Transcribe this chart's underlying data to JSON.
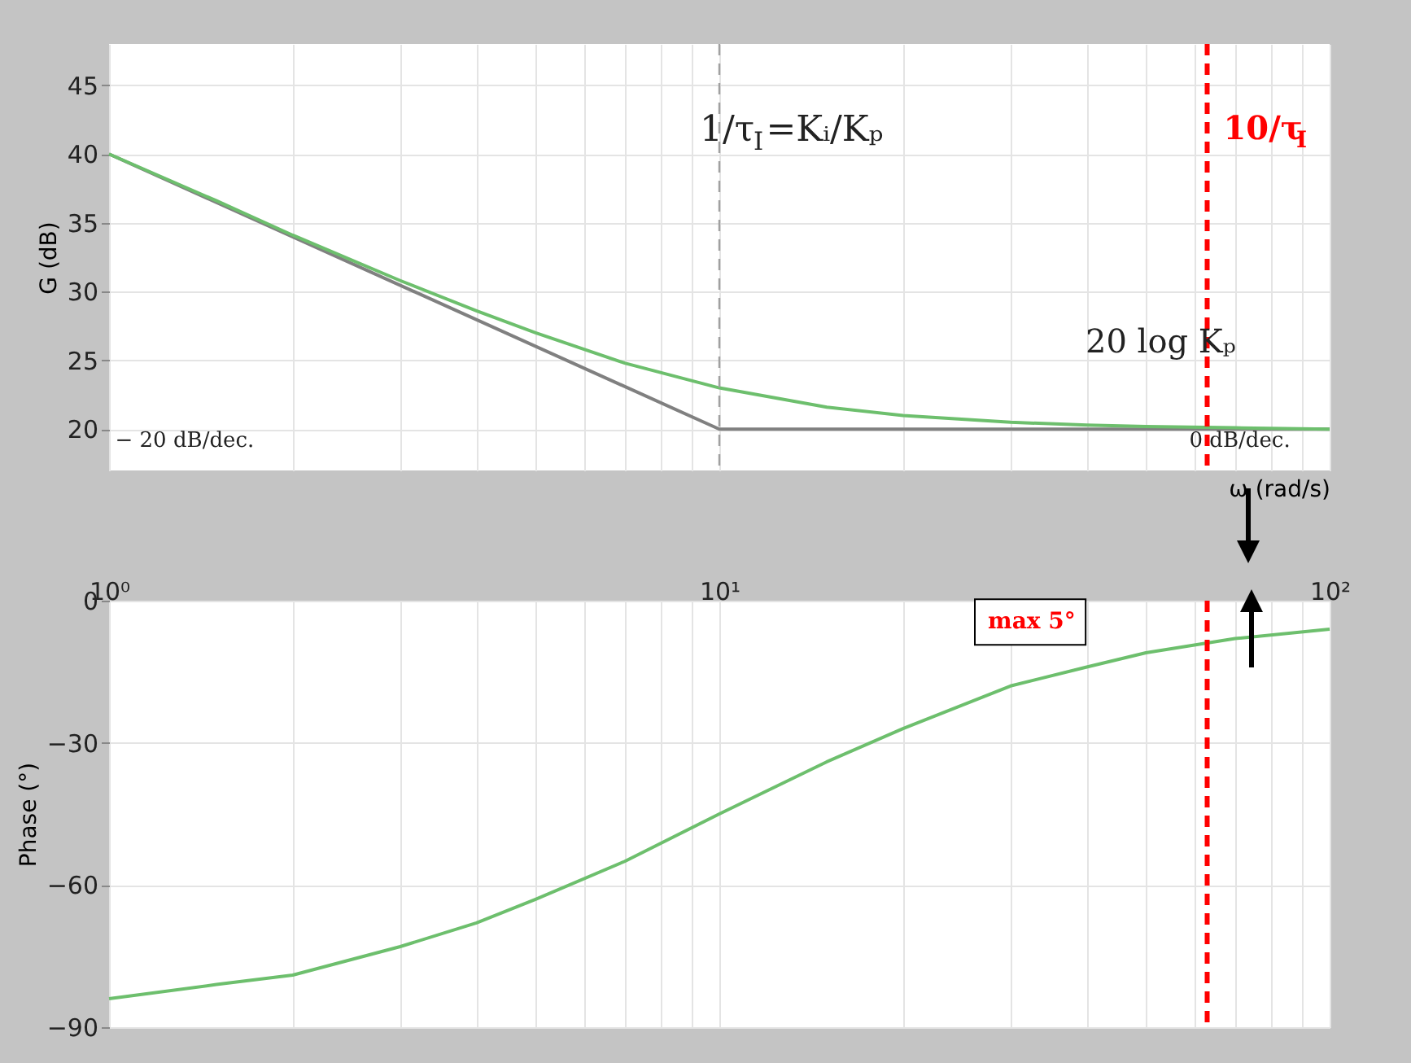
{
  "chart_data": [
    {
      "type": "line",
      "ylabel": "G (dB)",
      "xlabel": "ω (rad/s)",
      "log": "x",
      "grid": true,
      "tick_labels": "y",
      "xlim": [
        1,
        100
      ],
      "ylim": [
        17,
        48
      ],
      "yticks": [
        20,
        25,
        30,
        35,
        40,
        45
      ],
      "xticks": [
        1,
        2,
        3,
        4,
        5,
        6,
        7,
        8,
        9,
        10,
        20,
        30,
        40,
        50,
        60,
        70,
        80,
        90,
        100
      ],
      "series": [
        {
          "color": "#808080",
          "x": [
            1,
            10,
            100
          ],
          "values": [
            40,
            20,
            20
          ]
        },
        {
          "color": "#6dbf6d",
          "x": [
            1,
            1.5,
            2,
            3,
            4,
            5,
            7,
            10,
            15,
            20,
            30,
            40,
            50,
            70,
            100
          ],
          "values": [
            40.0,
            36.6,
            34.1,
            30.8,
            28.6,
            27.0,
            24.8,
            23.0,
            21.6,
            21.0,
            20.5,
            20.3,
            20.2,
            20.1,
            20.0
          ]
        }
      ],
      "ref_lines": [
        {
          "axis": "x",
          "value": 10,
          "label": "1/τ$_{I}$=Kᵢ/Kₚ",
          "color": "#a0a0a0",
          "line_style": "dashed"
        },
        {
          "axis": "x",
          "value": 63,
          "label": "10/τ$_{I}$",
          "color": "#ff0000",
          "line_style": "dashed"
        }
      ],
      "annotations": [
        "20 log Kₚ",
        "− 20 dB/dec.",
        "0 dB/dec."
      ]
    },
    {
      "type": "line",
      "ylabel": "Phase (°)",
      "log": "x",
      "grid": true,
      "xlim": [
        1,
        100
      ],
      "ylim": [
        -90,
        0
      ],
      "yticks": [
        {
          "value": -90,
          "label": "−90"
        },
        {
          "value": -60,
          "label": "−60"
        },
        {
          "value": -30,
          "label": "−30"
        },
        0
      ],
      "xticks": [
        {
          "value": 1,
          "label": "10⁰"
        },
        {
          "value": 2,
          "label": null
        },
        {
          "value": 3,
          "label": null
        },
        {
          "value": 4,
          "label": null
        },
        {
          "value": 5,
          "label": null
        },
        {
          "value": 6,
          "label": null
        },
        {
          "value": 7,
          "label": null
        },
        {
          "value": 8,
          "label": null
        },
        {
          "value": 9,
          "label": null
        },
        {
          "value": 10,
          "label": "10¹"
        },
        {
          "value": 20,
          "label": null
        },
        {
          "value": 30,
          "label": null
        },
        {
          "value": 40,
          "label": null
        },
        {
          "value": 50,
          "label": null
        },
        {
          "value": 60,
          "label": null
        },
        {
          "value": 70,
          "label": null
        },
        {
          "value": 80,
          "label": null
        },
        {
          "value": 90,
          "label": null
        },
        {
          "value": 100,
          "label": "10²"
        }
      ],
      "series": [
        {
          "color": "#6dbf6d",
          "x": [
            1,
            1.5,
            2,
            3,
            4,
            5,
            7,
            10,
            15,
            20,
            30,
            40,
            50,
            70,
            100
          ],
          "values": [
            -84,
            -81,
            -79,
            -73,
            -68,
            -63,
            -55,
            -45,
            -34,
            -27,
            -18,
            -14,
            -11,
            -8,
            -6
          ]
        }
      ],
      "ref_lines": [
        {
          "axis": "x",
          "value": 63,
          "color": "#ff0000",
          "line_style": "dashed"
        }
      ],
      "annotations": [
        "max 5°"
      ]
    }
  ]
}
